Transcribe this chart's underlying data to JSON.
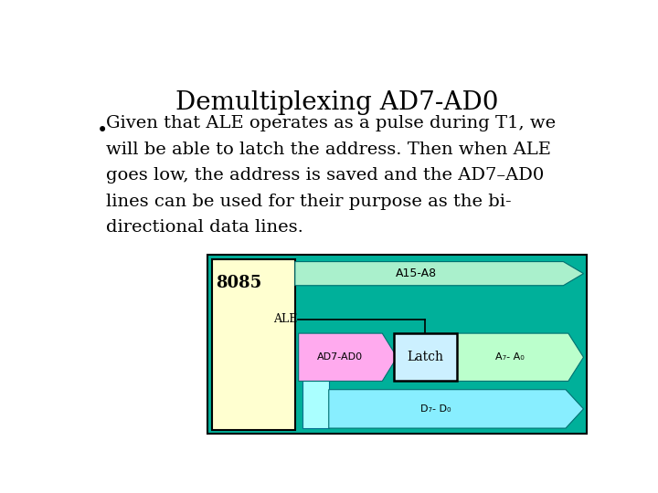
{
  "title": "Demultiplexing AD7-AD0",
  "title_fontsize": 20,
  "bullet_fontsize": 14,
  "bg_color": "#ffffff",
  "diagram_bg": "#00b09a",
  "chip_color": "#ffffd0",
  "chip_label": "8085",
  "a15a8_color": "#aaf0cc",
  "a15a8_label": "A15-A8",
  "ad7ad0_color": "#ffaaee",
  "ad7ad0_label": "AD7-AD0",
  "latch_color": "#ccf0ff",
  "latch_label": "Latch",
  "a7a0_color": "#bbffcc",
  "a7a0_label": "A₇- A₀",
  "d7d0_color": "#88eeff",
  "d7d0_label": "D₇- D₀",
  "ale_label": "ALE",
  "ale_bar_color": "#aaffff",
  "lines": [
    "Given that ALE operates as a pulse during T1, we",
    "will be able to latch the address. Then when ALE",
    "goes low, the address is saved and the AD7–AD0",
    "lines can be used for their purpose as the bi-",
    "directional data lines."
  ]
}
